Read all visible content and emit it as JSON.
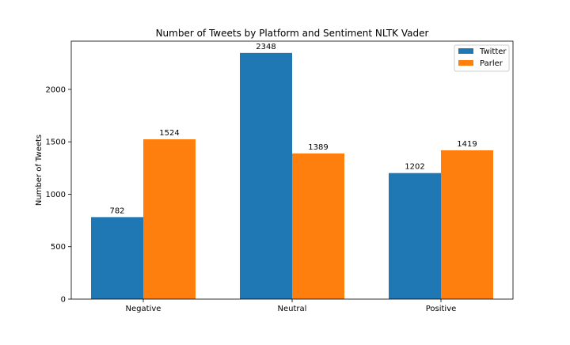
{
  "chart_data": {
    "type": "bar",
    "title": "Number of Tweets by Platform and Sentiment NLTK Vader",
    "xlabel": "",
    "ylabel": "Number of Tweets",
    "categories": [
      "Negative",
      "Neutral",
      "Positive"
    ],
    "series": [
      {
        "name": "Twitter",
        "color": "#1f77b4",
        "values": [
          782,
          2348,
          1202
        ]
      },
      {
        "name": "Parler",
        "color": "#ff7f0e",
        "values": [
          1524,
          1389,
          1419
        ]
      }
    ],
    "ylim": [
      0,
      2460
    ],
    "yticks": [
      0,
      500,
      1000,
      1500,
      2000
    ],
    "legend": "top-right",
    "grid": false
  }
}
